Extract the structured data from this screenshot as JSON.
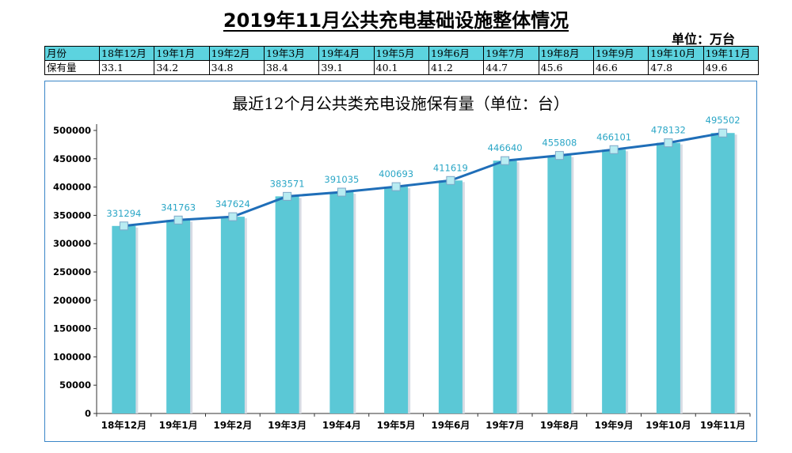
{
  "page_title": "2019年11月公共充电基础设施整体情况",
  "unit_label": "单位：万台",
  "summary_table": {
    "row1_label": "月份",
    "row2_label": "保有量",
    "months": [
      "18年12月",
      "19年1月",
      "19年2月",
      "19年3月",
      "19年4月",
      "19年5月",
      "19年6月",
      "19年7月",
      "19年8月",
      "19年9月",
      "19年10月",
      "19年11月"
    ],
    "values": [
      "33.1",
      "34.2",
      "34.8",
      "38.4",
      "39.1",
      "40.1",
      "41.2",
      "44.7",
      "45.6",
      "46.6",
      "47.8",
      "49.6"
    ]
  },
  "colors": {
    "bar": "#5bc8d6",
    "line": "#1f6eb8",
    "marker": "#b8ecf2",
    "data_label": "#2aa6c6",
    "table_header": "#5cd3df",
    "chart_border": "#3a86c7"
  },
  "chart_data": {
    "type": "bar",
    "title": "最近12个月公共类充电设施保有量（单位：台）",
    "categories": [
      "18年12月",
      "19年1月",
      "19年2月",
      "19年3月",
      "19年4月",
      "19年5月",
      "19年6月",
      "19年7月",
      "19年8月",
      "19年9月",
      "19年10月",
      "19年11月"
    ],
    "values": [
      331294,
      341763,
      347624,
      383571,
      391035,
      400693,
      411619,
      446640,
      455808,
      466101,
      478132,
      495502
    ],
    "overlay_line": true,
    "ylim": [
      0,
      500000
    ],
    "yticks": [
      0,
      50000,
      100000,
      150000,
      200000,
      250000,
      300000,
      350000,
      400000,
      450000,
      500000
    ],
    "grid": false,
    "legend": "none",
    "xlabel": "",
    "ylabel": ""
  }
}
